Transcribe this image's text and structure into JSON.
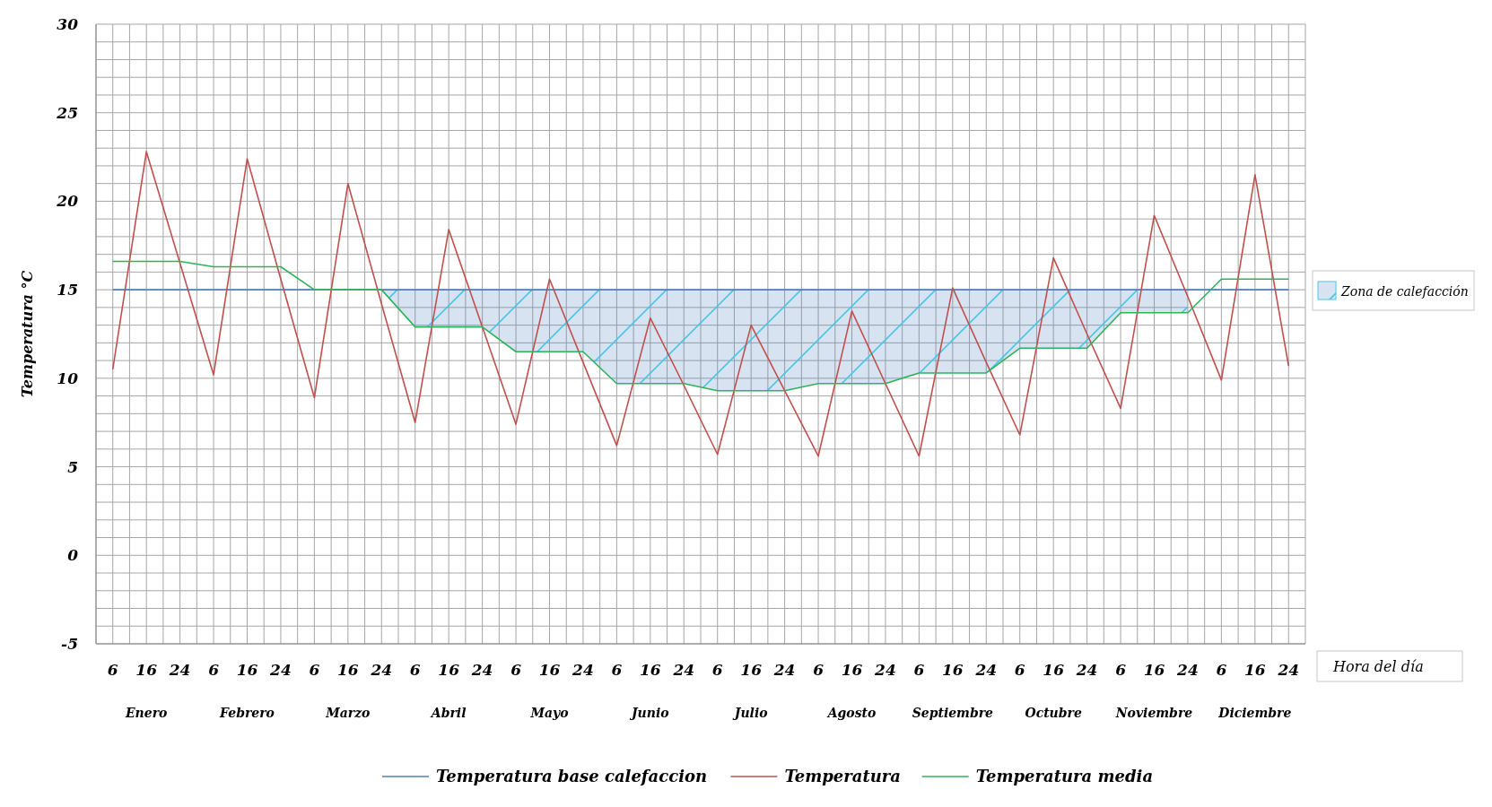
{
  "chart_data": {
    "type": "line",
    "ylabel": "Temperatura °C",
    "xlabel": "Hora del  día",
    "categories": [
      "6",
      "16",
      "24",
      "6",
      "16",
      "24",
      "6",
      "16",
      "24",
      "6",
      "16",
      "24",
      "6",
      "16",
      "24",
      "6",
      "16",
      "24",
      "6",
      "16",
      "24",
      "6",
      "16",
      "24",
      "6",
      "16",
      "24",
      "6",
      "16",
      "24",
      "6",
      "16",
      "24",
      "6",
      "16",
      "24"
    ],
    "annotations": [
      "Enero",
      "Febrero",
      "Marzo",
      "Abril",
      "Mayo",
      "Junio",
      "Julio",
      "Agosto",
      "Septiembre",
      "Octubre",
      "Noviembre",
      "Diciembre",
      "Zona de calefacción"
    ],
    "ylim": [
      -5,
      30
    ],
    "yticks": [
      -5,
      0,
      5,
      10,
      15,
      20,
      25,
      30
    ],
    "grid": true,
    "legend": "bottom",
    "marker": "none",
    "line_style": "solid",
    "series": [
      {
        "name": "Temperatura base calefaccion",
        "color": "#4f81bd",
        "values": [
          15,
          15,
          15,
          15,
          15,
          15,
          15,
          15,
          15,
          15,
          15,
          15,
          15,
          15,
          15,
          15,
          15,
          15,
          15,
          15,
          15,
          15,
          15,
          15,
          15,
          15,
          15,
          15,
          15,
          15,
          15,
          15,
          15,
          15,
          15,
          15
        ],
        "lower": [
          null,
          null,
          null,
          null,
          null,
          null,
          null,
          null,
          15,
          12.9,
          12.9,
          12.9,
          11.5,
          11.5,
          11.5,
          9.7,
          9.7,
          9.7,
          9.3,
          9.3,
          9.3,
          9.7,
          9.7,
          9.7,
          10.3,
          10.3,
          10.3,
          11.7,
          11.7,
          11.7,
          13.7,
          13.7,
          13.7,
          null,
          null,
          null
        ],
        "upper": [
          null,
          null,
          null,
          null,
          null,
          null,
          null,
          null,
          15,
          15,
          15,
          15,
          15,
          15,
          15,
          15,
          15,
          15,
          15,
          15,
          15,
          15,
          15,
          15,
          15,
          15,
          15,
          15,
          15,
          15,
          15,
          15,
          15,
          null,
          null,
          null
        ]
      },
      {
        "name": "Temperatura",
        "color": "#c0504d",
        "values": [
          10.5,
          22.8,
          16.5,
          10.2,
          22.4,
          15.6,
          8.9,
          21,
          14.2,
          7.5,
          18.4,
          12.9,
          7.4,
          15.6,
          10.9,
          6.2,
          13.4,
          9.6,
          5.7,
          13,
          9.3,
          5.6,
          13.8,
          9.7,
          5.6,
          15.1,
          10.9,
          6.8,
          16.8,
          12.5,
          8.3,
          19.2,
          14.6,
          9.9,
          21.5,
          10.7
        ]
      },
      {
        "name": "Temperatura media",
        "color": "#2fb35a",
        "values": [
          16.6,
          16.6,
          16.6,
          16.3,
          16.3,
          16.3,
          15,
          15,
          15,
          12.9,
          12.9,
          12.9,
          11.5,
          11.5,
          11.5,
          9.7,
          9.7,
          9.7,
          9.3,
          9.3,
          9.3,
          9.7,
          9.7,
          9.7,
          10.3,
          10.3,
          10.3,
          11.7,
          11.7,
          11.7,
          13.7,
          13.7,
          13.7,
          15.6,
          15.6,
          15.6
        ]
      }
    ]
  }
}
